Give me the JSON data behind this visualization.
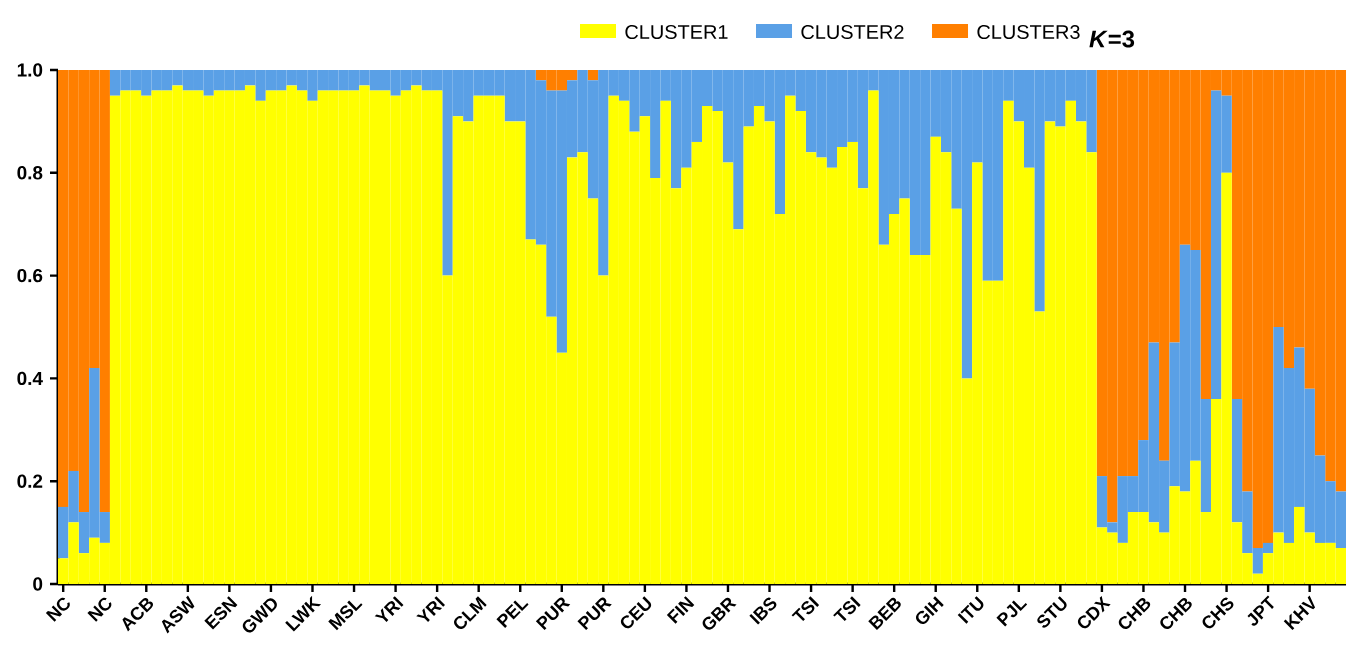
{
  "chart_data": {
    "type": "bar",
    "stacked": true,
    "categories": [
      "NC",
      null,
      null,
      null,
      "NC",
      null,
      null,
      null,
      "ACB",
      null,
      null,
      null,
      "ASW",
      null,
      null,
      null,
      "ESN",
      null,
      null,
      null,
      "GWD",
      null,
      null,
      null,
      "LWK",
      null,
      null,
      null,
      "MSL",
      null,
      null,
      null,
      "YRI",
      null,
      null,
      null,
      "YRI",
      null,
      null,
      null,
      "CLM",
      null,
      null,
      null,
      "PEL",
      null,
      null,
      null,
      "PUR",
      null,
      null,
      null,
      "PUR",
      null,
      null,
      null,
      "CEU",
      null,
      null,
      null,
      "FIN",
      null,
      null,
      null,
      "GBR",
      null,
      null,
      null,
      "IBS",
      null,
      null,
      null,
      "TSI",
      null,
      null,
      null,
      "TSI",
      null,
      null,
      null,
      "BEB",
      null,
      null,
      null,
      "GIH",
      null,
      null,
      null,
      "ITU",
      null,
      null,
      null,
      "PJL",
      null,
      null,
      null,
      "STU",
      null,
      null,
      null,
      "CDX",
      null,
      null,
      null,
      "CHB",
      null,
      null,
      null,
      "CHB",
      null,
      null,
      null,
      "CHS",
      null,
      null,
      null,
      "JPT",
      null,
      null,
      null,
      "KHV",
      null,
      null,
      null
    ],
    "series": [
      {
        "name": "CLUSTER1",
        "color": "#ffff00",
        "values": [
          0.05,
          0.12,
          0.06,
          0.09,
          0.08,
          0.95,
          0.96,
          0.96,
          0.95,
          0.96,
          0.96,
          0.97,
          0.96,
          0.96,
          0.95,
          0.96,
          0.96,
          0.96,
          0.97,
          0.94,
          0.96,
          0.96,
          0.97,
          0.96,
          0.94,
          0.96,
          0.96,
          0.96,
          0.96,
          0.97,
          0.96,
          0.96,
          0.95,
          0.96,
          0.97,
          0.96,
          0.96,
          0.6,
          0.91,
          0.9,
          0.95,
          0.95,
          0.95,
          0.9,
          0.9,
          0.67,
          0.66,
          0.52,
          0.45,
          0.83,
          0.84,
          0.75,
          0.6,
          0.95,
          0.94,
          0.88,
          0.91,
          0.79,
          0.94,
          0.77,
          0.81,
          0.86,
          0.93,
          0.92,
          0.82,
          0.69,
          0.89,
          0.93,
          0.9,
          0.72,
          0.95,
          0.92,
          0.84,
          0.83,
          0.81,
          0.85,
          0.86,
          0.77,
          0.96,
          0.66,
          0.72,
          0.75,
          0.64,
          0.64,
          0.87,
          0.84,
          0.73,
          0.4,
          0.82,
          0.59,
          0.59,
          0.94,
          0.9,
          0.81,
          0.53,
          0.9,
          0.89,
          0.94,
          0.9,
          0.84,
          0.11,
          0.1,
          0.08,
          0.14,
          0.14,
          0.12,
          0.1,
          0.19,
          0.18,
          0.24,
          0.14,
          0.36,
          0.8,
          0.12,
          0.06,
          0.02,
          0.06,
          0.1,
          0.08,
          0.15,
          0.1,
          0.08,
          0.08,
          0.07
        ]
      },
      {
        "name": "CLUSTER2",
        "color": "#5aa0e6",
        "values": [
          0.1,
          0.1,
          0.08,
          0.33,
          0.06,
          0.05,
          0.04,
          0.04,
          0.05,
          0.04,
          0.04,
          0.03,
          0.04,
          0.04,
          0.05,
          0.04,
          0.04,
          0.04,
          0.03,
          0.06,
          0.04,
          0.04,
          0.03,
          0.04,
          0.06,
          0.04,
          0.04,
          0.04,
          0.04,
          0.03,
          0.04,
          0.04,
          0.05,
          0.04,
          0.03,
          0.04,
          0.04,
          0.4,
          0.09,
          0.1,
          0.05,
          0.05,
          0.05,
          0.1,
          0.1,
          0.33,
          0.32,
          0.44,
          0.51,
          0.15,
          0.16,
          0.23,
          0.4,
          0.05,
          0.06,
          0.12,
          0.09,
          0.21,
          0.06,
          0.23,
          0.19,
          0.14,
          0.07,
          0.08,
          0.18,
          0.31,
          0.11,
          0.07,
          0.1,
          0.28,
          0.05,
          0.08,
          0.16,
          0.17,
          0.19,
          0.15,
          0.14,
          0.23,
          0.04,
          0.34,
          0.28,
          0.25,
          0.36,
          0.36,
          0.13,
          0.16,
          0.27,
          0.6,
          0.18,
          0.41,
          0.41,
          0.06,
          0.1,
          0.19,
          0.47,
          0.1,
          0.11,
          0.06,
          0.1,
          0.16,
          0.1,
          0.02,
          0.13,
          0.07,
          0.14,
          0.35,
          0.14,
          0.28,
          0.48,
          0.41,
          0.22,
          0.6,
          0.15,
          0.24,
          0.12,
          0.05,
          0.02,
          0.4,
          0.34,
          0.31,
          0.28,
          0.17,
          0.12,
          0.11
        ]
      },
      {
        "name": "CLUSTER3",
        "color": "#ff7f00",
        "values": [
          0.85,
          0.78,
          0.86,
          0.58,
          0.86,
          0,
          0,
          0,
          0,
          0,
          0,
          0,
          0,
          0,
          0,
          0,
          0,
          0,
          0,
          0,
          0,
          0,
          0,
          0,
          0,
          0,
          0,
          0,
          0,
          0,
          0,
          0,
          0,
          0,
          0,
          0,
          0,
          0,
          0,
          0,
          0,
          0,
          0,
          0,
          0,
          0,
          0.02,
          0.04,
          0.04,
          0.02,
          0,
          0.02,
          0,
          0,
          0,
          0,
          0,
          0,
          0,
          0,
          0,
          0,
          0,
          0,
          0,
          0,
          0,
          0,
          0,
          0,
          0,
          0,
          0,
          0,
          0,
          0,
          0,
          0,
          0,
          0,
          0,
          0,
          0,
          0,
          0,
          0,
          0,
          0,
          0,
          0,
          0,
          0,
          0,
          0,
          0,
          0,
          0,
          0,
          0,
          0,
          0.79,
          0.88,
          0.79,
          0.79,
          0.72,
          0.53,
          0.76,
          0.53,
          0.34,
          0.35,
          0.64,
          0.04,
          0.05,
          0.64,
          0.82,
          0.93,
          0.92,
          0.5,
          0.58,
          0.54,
          0.62,
          0.75,
          0.8,
          0.82
        ]
      }
    ],
    "ylim": [
      0,
      1
    ],
    "yticks": [
      0,
      0.2,
      0.4,
      0.6,
      0.8,
      {
        "value": 1,
        "label": "1.0"
      }
    ],
    "legend": "top",
    "annotations": [
      "*K*=3"
    ]
  }
}
